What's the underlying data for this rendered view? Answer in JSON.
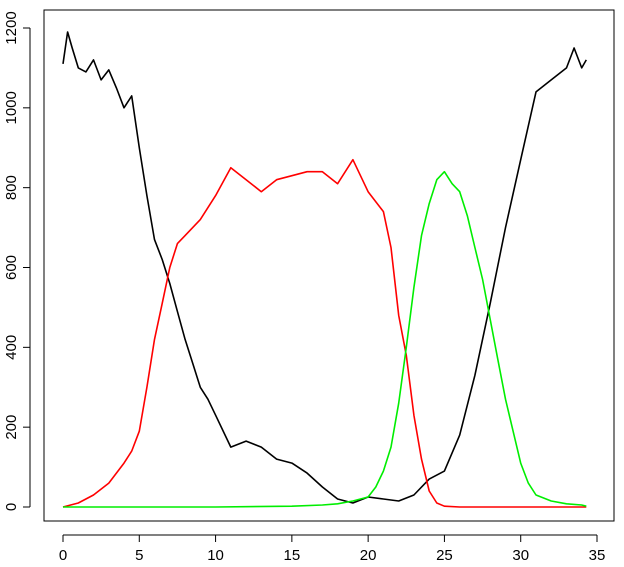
{
  "chart_data": {
    "type": "line",
    "title": "",
    "xlabel": "",
    "ylabel": "",
    "xlim": [
      0,
      35
    ],
    "ylim": [
      0,
      1200
    ],
    "x_ticks": [
      0,
      5,
      10,
      15,
      20,
      25,
      30,
      35
    ],
    "y_ticks": [
      0,
      200,
      400,
      600,
      800,
      1000,
      1200
    ],
    "x_tick_labels": [
      "0",
      "5",
      "10",
      "15",
      "20",
      "25",
      "30",
      "35"
    ],
    "y_tick_labels": [
      "0",
      "200",
      "400",
      "600",
      "800",
      "1000",
      "1200"
    ],
    "grid": false,
    "legend": "none",
    "series": [
      {
        "color": "#000000",
        "x": [
          0,
          0.3,
          0.6,
          1,
          1.5,
          2,
          2.5,
          3,
          3.5,
          4,
          4.5,
          5,
          5.5,
          6,
          6.5,
          7,
          7.5,
          8,
          8.5,
          9,
          9.5,
          10,
          11,
          12,
          13,
          14,
          15,
          16,
          17,
          18,
          19,
          20,
          21,
          22,
          23,
          24,
          25,
          26,
          27,
          28,
          29,
          30,
          31,
          32,
          33,
          33.5,
          34,
          34.3
        ],
        "y": [
          1110,
          1190,
          1150,
          1100,
          1090,
          1120,
          1070,
          1095,
          1050,
          1000,
          1030,
          900,
          780,
          670,
          620,
          560,
          490,
          420,
          360,
          300,
          270,
          230,
          150,
          165,
          150,
          120,
          110,
          85,
          50,
          20,
          10,
          25,
          20,
          15,
          30,
          70,
          90,
          180,
          330,
          510,
          700,
          870,
          1040,
          1070,
          1100,
          1150,
          1100,
          1120
        ]
      },
      {
        "color": "#ff0000",
        "x": [
          0,
          1,
          2,
          3,
          4,
          4.5,
          5,
          5.5,
          6,
          6.5,
          7,
          7.5,
          8,
          8.5,
          9,
          10,
          11,
          12,
          13,
          14,
          15,
          16,
          17,
          18,
          19,
          19.5,
          20,
          21,
          21.5,
          22,
          22.5,
          23,
          23.5,
          24,
          24.5,
          25,
          26,
          28,
          30,
          32,
          34,
          34.3
        ],
        "y": [
          0,
          10,
          30,
          60,
          110,
          140,
          190,
          300,
          420,
          510,
          600,
          660,
          680,
          700,
          720,
          780,
          850,
          820,
          790,
          820,
          830,
          840,
          840,
          810,
          870,
          830,
          790,
          740,
          650,
          480,
          380,
          230,
          120,
          40,
          10,
          2,
          0,
          0,
          0,
          0,
          0,
          0
        ]
      },
      {
        "color": "#00ee00",
        "x": [
          0,
          5,
          10,
          15,
          17,
          18,
          19,
          20,
          20.5,
          21,
          21.5,
          22,
          22.5,
          23,
          23.5,
          24,
          24.5,
          25,
          25.5,
          26,
          26.5,
          27,
          27.5,
          28,
          28.5,
          29,
          29.5,
          30,
          30.5,
          31,
          32,
          33,
          34,
          34.3
        ],
        "y": [
          0,
          0,
          0,
          2,
          5,
          8,
          15,
          25,
          50,
          90,
          150,
          260,
          400,
          550,
          680,
          760,
          820,
          840,
          810,
          790,
          730,
          650,
          570,
          470,
          370,
          270,
          190,
          110,
          60,
          30,
          15,
          8,
          5,
          2
        ]
      }
    ]
  }
}
